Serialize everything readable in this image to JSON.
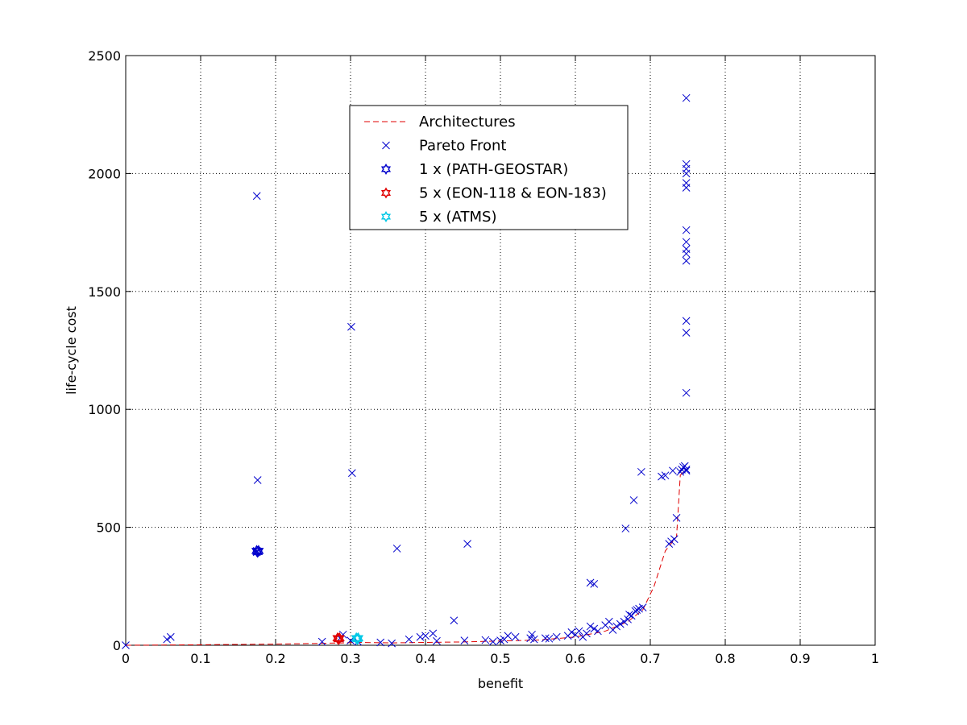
{
  "chart_data": {
    "type": "scatter",
    "title": "",
    "xlabel": "benefit",
    "ylabel": "life-cycle cost",
    "xlim": [
      0,
      1
    ],
    "ylim": [
      0,
      2500
    ],
    "xticks": [
      "0",
      "0.1",
      "0.2",
      "0.3",
      "0.4",
      "0.5",
      "0.6",
      "0.7",
      "0.8",
      "0.9",
      "1"
    ],
    "yticks": [
      "0",
      "500",
      "1000",
      "1500",
      "2000",
      "2500"
    ],
    "grid": true,
    "legend_position": "top-center",
    "legend": [
      {
        "label": "Architectures",
        "marker": "dashed-line",
        "color": "#e00000"
      },
      {
        "label": "Pareto Front",
        "marker": "x",
        "color": "#0000cc"
      },
      {
        "label": "1 x (PATH-GEOSTAR)",
        "marker": "hexagram",
        "color": "#0000cc"
      },
      {
        "label": "5 x (EON-118 & EON-183)",
        "marker": "hexagram",
        "color": "#e00000"
      },
      {
        "label": "5 x (ATMS)",
        "marker": "hexagram",
        "color": "#00c8e6"
      }
    ],
    "series": [
      {
        "name": "Architectures",
        "style": "dashed-line",
        "color": "#e00000",
        "x": [
          0,
          0.1,
          0.2,
          0.26,
          0.29,
          0.31,
          0.355,
          0.4,
          0.45,
          0.5,
          0.55,
          0.6,
          0.64,
          0.67,
          0.69,
          0.705,
          0.72,
          0.73,
          0.735,
          0.74,
          0.745,
          0.75
        ],
        "y": [
          0,
          2,
          5,
          8,
          10,
          12,
          10,
          12,
          14,
          18,
          22,
          35,
          60,
          100,
          150,
          250,
          400,
          440,
          460,
          720,
          740,
          750
        ]
      },
      {
        "name": "Pareto Front",
        "style": "x",
        "color": "#0000cc",
        "x": [
          0.0,
          0.055,
          0.06,
          0.175,
          0.176,
          0.175,
          0.175,
          0.262,
          0.286,
          0.29,
          0.3,
          0.301,
          0.302,
          0.31,
          0.34,
          0.355,
          0.362,
          0.378,
          0.393,
          0.4,
          0.41,
          0.415,
          0.438,
          0.452,
          0.456,
          0.48,
          0.49,
          0.5,
          0.505,
          0.51,
          0.52,
          0.54,
          0.542,
          0.545,
          0.56,
          0.565,
          0.575,
          0.59,
          0.595,
          0.6,
          0.605,
          0.61,
          0.615,
          0.62,
          0.62,
          0.625,
          0.625,
          0.63,
          0.64,
          0.645,
          0.65,
          0.655,
          0.66,
          0.665,
          0.667,
          0.67,
          0.672,
          0.675,
          0.678,
          0.68,
          0.682,
          0.685,
          0.688,
          0.69,
          0.715,
          0.72,
          0.725,
          0.728,
          0.73,
          0.732,
          0.735,
          0.74,
          0.742,
          0.744,
          0.746,
          0.748,
          0.748,
          0.748,
          0.748,
          0.748,
          0.748,
          0.748,
          0.748,
          0.748,
          0.748,
          0.748,
          0.748,
          0.748,
          0.748,
          0.748,
          0.748
        ],
        "y": [
          0,
          25,
          35,
          1905,
          700,
          400,
          395,
          15,
          30,
          45,
          20,
          1350,
          730,
          15,
          12,
          8,
          410,
          25,
          35,
          40,
          50,
          18,
          105,
          20,
          430,
          22,
          15,
          20,
          25,
          40,
          35,
          30,
          45,
          25,
          30,
          28,
          35,
          40,
          55,
          45,
          60,
          35,
          50,
          80,
          265,
          260,
          70,
          60,
          85,
          100,
          65,
          80,
          90,
          100,
          495,
          110,
          130,
          125,
          615,
          145,
          150,
          155,
          735,
          160,
          715,
          720,
          430,
          440,
          740,
          450,
          540,
          735,
          745,
          755,
          760,
          740,
          2320,
          2040,
          2020,
          2000,
          1960,
          1940,
          1760,
          1710,
          1680,
          1660,
          1630,
          1375,
          1325,
          1070,
          745
        ]
      },
      {
        "name": "1 x (PATH-GEOSTAR)",
        "style": "hexagram",
        "color": "#0000cc",
        "x": [
          0.176
        ],
        "y": [
          400
        ]
      },
      {
        "name": "5 x (EON-118 & EON-183)",
        "style": "hexagram",
        "color": "#e00000",
        "x": [
          0.284
        ],
        "y": [
          30
        ]
      },
      {
        "name": "5 x (ATMS)",
        "style": "hexagram",
        "color": "#00c8e6",
        "x": [
          0.309
        ],
        "y": [
          30
        ]
      }
    ]
  }
}
